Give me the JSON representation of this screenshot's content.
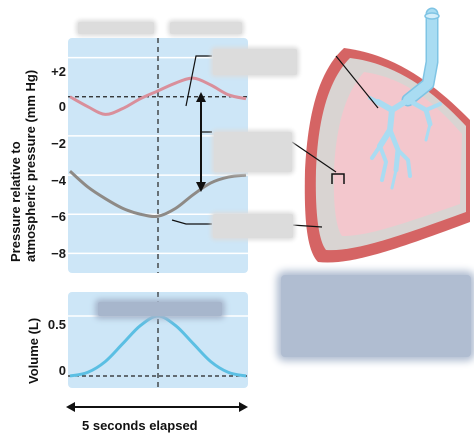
{
  "pressure_chart": {
    "ylabel_line1": "Pressure relative to",
    "ylabel_line2": "atmospheric pressure (mm Hg)",
    "ticks": [
      "+2",
      "0",
      "−2",
      "−4",
      "−6",
      "−8"
    ]
  },
  "volume_chart": {
    "ylabel": "Volume (L)",
    "ticks": [
      "0.5",
      "0"
    ]
  },
  "time_axis": {
    "label": "5 seconds elapsed"
  },
  "chart_data": [
    {
      "type": "line",
      "title": "",
      "ylabel": "Pressure relative to atmospheric pressure (mm Hg)",
      "ylim": [
        -9,
        3
      ],
      "yticks": [
        2,
        0,
        -2,
        -4,
        -6,
        -8
      ],
      "series": [
        {
          "color": "#d98f9b",
          "x": [
            0,
            0.5,
            1,
            1.5,
            2,
            2.5,
            3,
            3.5,
            4,
            4.5,
            5
          ],
          "values": [
            0,
            -0.5,
            -0.9,
            -0.6,
            -0.1,
            0.3,
            0.7,
            0.95,
            0.6,
            0.1,
            -0.1
          ]
        },
        {
          "color": "#8e8a86",
          "x": [
            0,
            0.5,
            1,
            1.5,
            2,
            2.5,
            3,
            3.5,
            4,
            4.5,
            5
          ],
          "values": [
            -3.8,
            -4.6,
            -5.2,
            -5.7,
            -6.0,
            -6.1,
            -5.7,
            -5.0,
            -4.4,
            -4.1,
            -4.0
          ]
        }
      ]
    },
    {
      "type": "area",
      "title": "",
      "ylabel": "Volume (L)",
      "ylim": [
        -0.1,
        0.7
      ],
      "yticks": [
        0.5,
        0
      ],
      "series": [
        {
          "color": "#5bbfe3",
          "x": [
            0,
            0.5,
            1,
            1.5,
            2,
            2.5,
            3,
            3.5,
            4,
            4.5,
            5
          ],
          "values": [
            0,
            0.03,
            0.12,
            0.27,
            0.42,
            0.5,
            0.42,
            0.27,
            0.12,
            0.03,
            0
          ]
        }
      ]
    }
  ],
  "colors": {
    "chart_bg": "#cde6f7",
    "grid": "#ffffff",
    "lung_outer": "#d56464",
    "lung_pleura": "#d9d4d2",
    "lung_inner": "#f3c7cd",
    "airway": "#a9dcf2"
  }
}
